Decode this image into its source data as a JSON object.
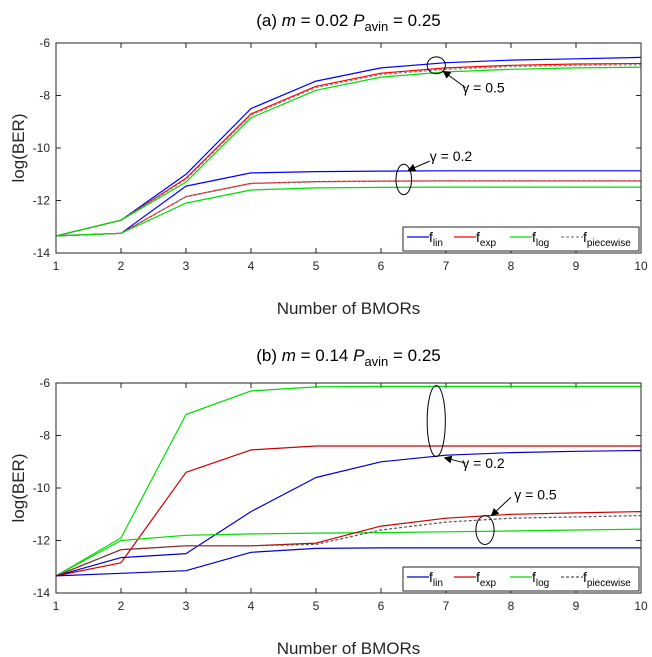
{
  "chart_data": [
    {
      "type": "line",
      "title_prefix": "(a)",
      "title_m_label": "m",
      "title_m_value": "= 0.02",
      "title_p_label": "P",
      "title_p_sub": "avin",
      "title_p_value": "= 0.25",
      "xlabel": "Number of BMORs",
      "ylabel": "log(BER)",
      "xlim": [
        1,
        10
      ],
      "ylim": [
        -14,
        -6
      ],
      "xticks": [
        1,
        2,
        3,
        4,
        5,
        6,
        7,
        8,
        9,
        10
      ],
      "yticks": [
        -14,
        -12,
        -10,
        -8,
        -6
      ],
      "x": [
        1,
        2,
        3,
        4,
        5,
        6,
        7,
        8,
        9,
        10
      ],
      "series": [
        {
          "name": "f_lin",
          "group": "gamma=0.5",
          "color": "#0000ff",
          "dash": "",
          "values": [
            -13.35,
            -12.75,
            -11.0,
            -8.5,
            -7.45,
            -6.95,
            -6.75,
            -6.65,
            -6.6,
            -6.55
          ]
        },
        {
          "name": "f_exp",
          "group": "gamma=0.5",
          "color": "#ff0000",
          "dash": "",
          "values": [
            -13.35,
            -12.75,
            -11.15,
            -8.7,
            -7.65,
            -7.15,
            -6.95,
            -6.85,
            -6.8,
            -6.78
          ]
        },
        {
          "name": "f_piecewise",
          "group": "gamma=0.5",
          "color": "#888888",
          "dash": "3,2",
          "values": [
            -13.35,
            -12.75,
            -11.2,
            -8.75,
            -7.7,
            -7.2,
            -7.0,
            -6.9,
            -6.85,
            -6.83
          ]
        },
        {
          "name": "f_log",
          "group": "gamma=0.5",
          "color": "#00dd00",
          "dash": "",
          "values": [
            -13.35,
            -12.75,
            -11.3,
            -8.85,
            -7.8,
            -7.3,
            -7.1,
            -7.0,
            -6.95,
            -6.92
          ]
        },
        {
          "name": "f_lin",
          "group": "gamma=0.2",
          "color": "#0000ff",
          "dash": "",
          "values": [
            -13.35,
            -13.25,
            -11.45,
            -10.95,
            -10.9,
            -10.88,
            -10.87,
            -10.87,
            -10.87,
            -10.87
          ]
        },
        {
          "name": "f_exp",
          "group": "gamma=0.2",
          "color": "#ff0000",
          "dash": "",
          "values": [
            -13.35,
            -13.25,
            -11.85,
            -11.35,
            -11.28,
            -11.26,
            -11.25,
            -11.25,
            -11.25,
            -11.25
          ]
        },
        {
          "name": "f_piecewise",
          "group": "gamma=0.2",
          "color": "#888888",
          "dash": "3,2",
          "values": [
            -13.35,
            -13.25,
            -11.86,
            -11.36,
            -11.29,
            -11.27,
            -11.26,
            -11.26,
            -11.26,
            -11.26
          ]
        },
        {
          "name": "f_log",
          "group": "gamma=0.2",
          "color": "#00dd00",
          "dash": "",
          "values": [
            -13.35,
            -13.25,
            -12.1,
            -11.6,
            -11.52,
            -11.5,
            -11.49,
            -11.49,
            -11.49,
            -11.49
          ]
        }
      ],
      "annotations": [
        {
          "text": "γ = 0.5",
          "ellipse": {
            "cx": 6.85,
            "cy": -6.85,
            "rx": 0.14,
            "ry": 0.32
          },
          "text_x": 7.25,
          "text_y": -7.7,
          "arrow_from": [
            7.3,
            -7.7
          ],
          "arrow_to": [
            6.96,
            -7.08
          ]
        },
        {
          "text": "γ = 0.2",
          "ellipse": {
            "cx": 6.35,
            "cy": -11.2,
            "rx": 0.12,
            "ry": 0.58
          },
          "text_x": 6.75,
          "text_y": -10.3,
          "arrow_from": [
            6.75,
            -10.5
          ],
          "arrow_to": [
            6.42,
            -10.85
          ]
        }
      ],
      "legend": {
        "placement": "bottom-right",
        "entries": [
          {
            "base": "f",
            "sub": "lin",
            "color": "#0000ff",
            "dash": ""
          },
          {
            "base": "f",
            "sub": "exp",
            "color": "#ff0000",
            "dash": ""
          },
          {
            "base": "f",
            "sub": "log",
            "color": "#00dd00",
            "dash": ""
          },
          {
            "base": "f",
            "sub": "piecewise",
            "color": "#888888",
            "dash": "3,2"
          }
        ]
      }
    },
    {
      "type": "line",
      "title_prefix": "(b)",
      "title_m_label": "m",
      "title_m_value": "= 0.14",
      "title_p_label": "P",
      "title_p_sub": "avin",
      "title_p_value": "= 0.25",
      "xlabel": "Number of BMORs",
      "ylabel": "log(BER)",
      "xlim": [
        1,
        10
      ],
      "ylim": [
        -14,
        -6
      ],
      "xticks": [
        1,
        2,
        3,
        4,
        5,
        6,
        7,
        8,
        9,
        10
      ],
      "yticks": [
        -14,
        -12,
        -10,
        -8,
        -6
      ],
      "x": [
        1,
        2,
        3,
        4,
        5,
        6,
        7,
        8,
        9,
        10
      ],
      "series": [
        {
          "name": "f_log",
          "group": "gamma=0.2",
          "color": "#00dd00",
          "dash": "",
          "values": [
            -13.35,
            -11.9,
            -7.2,
            -6.3,
            -6.15,
            -6.13,
            -6.13,
            -6.13,
            -6.13,
            -6.13
          ]
        },
        {
          "name": "f_exp",
          "group": "gamma=0.2",
          "color": "#cc0000",
          "dash": "",
          "values": [
            -13.35,
            -12.85,
            -9.4,
            -8.55,
            -8.4,
            -8.4,
            -8.4,
            -8.4,
            -8.4,
            -8.4
          ]
        },
        {
          "name": "f_lin",
          "group": "gamma=0.2",
          "color": "#0000cc",
          "dash": "",
          "values": [
            -13.35,
            -12.65,
            -12.5,
            -10.9,
            -9.6,
            -9.0,
            -8.75,
            -8.65,
            -8.6,
            -8.57
          ]
        },
        {
          "name": "f_log",
          "group": "gamma=0.5",
          "color": "#00dd00",
          "dash": "",
          "values": [
            -13.35,
            -12.0,
            -11.8,
            -11.75,
            -11.72,
            -11.7,
            -11.67,
            -11.64,
            -11.6,
            -11.57
          ]
        },
        {
          "name": "f_exp",
          "group": "gamma=0.5",
          "color": "#cc0000",
          "dash": "",
          "values": [
            -13.35,
            -12.35,
            -12.2,
            -12.2,
            -12.1,
            -11.45,
            -11.15,
            -11.0,
            -10.95,
            -10.9
          ]
        },
        {
          "name": "f_piecewise",
          "group": "gamma=0.5",
          "color": "#555555",
          "dash": "3,2",
          "values": [
            -13.35,
            -12.35,
            -12.2,
            -12.2,
            -12.15,
            -11.6,
            -11.3,
            -11.15,
            -11.1,
            -11.05
          ]
        },
        {
          "name": "f_lin",
          "group": "gamma=0.5",
          "color": "#0000cc",
          "dash": "",
          "values": [
            -13.35,
            -13.25,
            -13.15,
            -12.45,
            -12.3,
            -12.28,
            -12.28,
            -12.28,
            -12.28,
            -12.28
          ]
        }
      ],
      "annotations": [
        {
          "text": "γ = 0.2",
          "ellipse": {
            "cx": 6.85,
            "cy": -7.45,
            "rx": 0.14,
            "ry": 1.35
          },
          "text_x": 7.25,
          "text_y": -9.05,
          "arrow_from": [
            7.3,
            -9.05
          ],
          "arrow_to": [
            6.98,
            -8.85
          ]
        },
        {
          "text": "γ = 0.5",
          "ellipse": {
            "cx": 7.6,
            "cy": -11.6,
            "rx": 0.14,
            "ry": 0.55
          },
          "text_x": 8.05,
          "text_y": -10.25,
          "arrow_from": [
            8.0,
            -10.35
          ],
          "arrow_to": [
            7.7,
            -11.05
          ]
        }
      ],
      "legend": {
        "placement": "bottom-right",
        "entries": [
          {
            "base": "f",
            "sub": "lin",
            "color": "#0000cc",
            "dash": ""
          },
          {
            "base": "f",
            "sub": "exp",
            "color": "#cc0000",
            "dash": ""
          },
          {
            "base": "f",
            "sub": "log",
            "color": "#00dd00",
            "dash": ""
          },
          {
            "base": "f",
            "sub": "piecewise",
            "color": "#555555",
            "dash": "3,2"
          }
        ]
      }
    }
  ]
}
